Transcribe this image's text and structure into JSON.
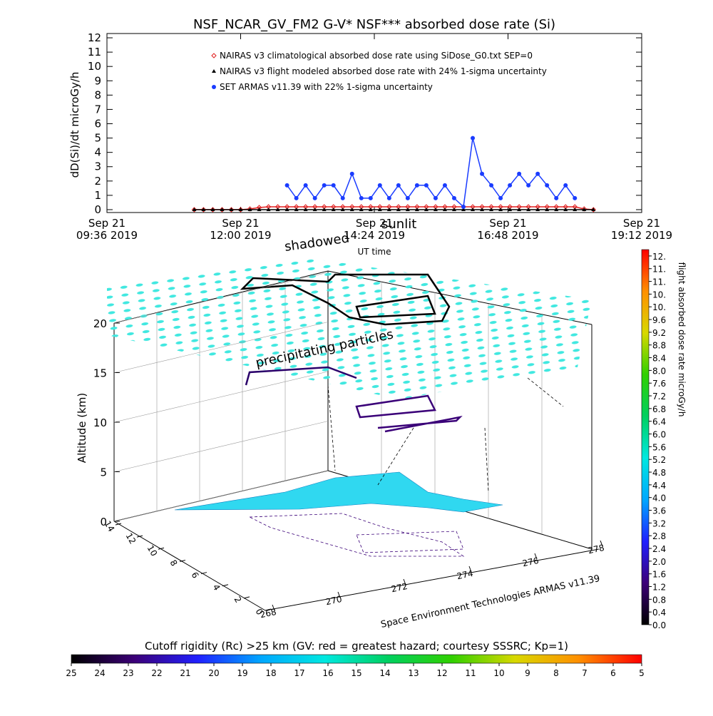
{
  "chart_data": [
    {
      "type": "line",
      "title": "NSF_NCAR_GV_FM2 G-V* NSF*** absorbed dose rate (Si)",
      "ylabel": "dD(Si)/dt microGy/h",
      "xlabel": "UT time",
      "xlim": [
        "2019-09-21 09:36",
        "2019-09-21 19:12"
      ],
      "xticks": [
        {
          "value": "2019-09-21 09:36",
          "label": [
            "Sep 21",
            "09:36 2019"
          ]
        },
        {
          "value": "2019-09-21 12:00",
          "label": [
            "Sep 21",
            "12:00 2019"
          ]
        },
        {
          "value": "2019-09-21 14:24",
          "label": [
            "Sep 21",
            "14:24 2019"
          ]
        },
        {
          "value": "2019-09-21 16:48",
          "label": [
            "Sep 21",
            "16:48 2019"
          ]
        },
        {
          "value": "2019-09-21 19:12",
          "label": [
            "Sep 21",
            "19:12 2019"
          ]
        }
      ],
      "ylim": [
        -0.2,
        12.3
      ],
      "yticks": [
        0,
        1,
        2,
        3,
        4,
        5,
        6,
        7,
        8,
        9,
        10,
        11,
        12
      ],
      "x": [
        "2019-09-21 11:10",
        "2019-09-21 11:20",
        "2019-09-21 11:30",
        "2019-09-21 11:40",
        "2019-09-21 11:50",
        "2019-09-21 12:00",
        "2019-09-21 12:10",
        "2019-09-21 12:20",
        "2019-09-21 12:30",
        "2019-09-21 12:40",
        "2019-09-21 12:50",
        "2019-09-21 13:00",
        "2019-09-21 13:10",
        "2019-09-21 13:20",
        "2019-09-21 13:30",
        "2019-09-21 13:40",
        "2019-09-21 13:50",
        "2019-09-21 14:00",
        "2019-09-21 14:10",
        "2019-09-21 14:20",
        "2019-09-21 14:30",
        "2019-09-21 14:40",
        "2019-09-21 14:50",
        "2019-09-21 15:00",
        "2019-09-21 15:10",
        "2019-09-21 15:20",
        "2019-09-21 15:30",
        "2019-09-21 15:40",
        "2019-09-21 15:50",
        "2019-09-21 16:00",
        "2019-09-21 16:10",
        "2019-09-21 16:20",
        "2019-09-21 16:30",
        "2019-09-21 16:40",
        "2019-09-21 16:50",
        "2019-09-21 17:00",
        "2019-09-21 17:10",
        "2019-09-21 17:20",
        "2019-09-21 17:30",
        "2019-09-21 17:40",
        "2019-09-21 17:50",
        "2019-09-21 18:00",
        "2019-09-21 18:10",
        "2019-09-21 18:20"
      ],
      "series": [
        {
          "name": "NAIRAS v3 climatological absorbed dose rate using SiDose_G0.txt SEP=0",
          "color": "#e02020",
          "marker": "diamond",
          "values": [
            0,
            0,
            0,
            0,
            0,
            0,
            0.05,
            0.15,
            0.2,
            0.2,
            0.2,
            0.2,
            0.2,
            0.2,
            0.2,
            0.2,
            0.2,
            0.2,
            0.2,
            0.2,
            0.2,
            0.2,
            0.2,
            0.2,
            0.2,
            0.2,
            0.2,
            0.2,
            0.2,
            0.2,
            0.2,
            0.2,
            0.2,
            0.2,
            0.2,
            0.2,
            0.2,
            0.2,
            0.2,
            0.2,
            0.2,
            0.2,
            0.05,
            0
          ]
        },
        {
          "name": "NAIRAS v3 flight modeled absorbed dose rate with 24% 1-sigma uncertainty",
          "color": "#000000",
          "marker": "triangle",
          "values": [
            0,
            0,
            0,
            0,
            0,
            0,
            0,
            0,
            0,
            0,
            0,
            0,
            0,
            0,
            0,
            0,
            0,
            0,
            0,
            0,
            0,
            0,
            0,
            0,
            0,
            0,
            0,
            0,
            0,
            0,
            0,
            0,
            0,
            0,
            0,
            0,
            0,
            0,
            0,
            0,
            0,
            0,
            0,
            0
          ]
        },
        {
          "name": "SET ARMAS v11.39 with 22% 1-sigma uncertainty",
          "color": "#1a3cff",
          "marker": "circle",
          "values": [
            null,
            null,
            null,
            null,
            null,
            null,
            null,
            null,
            null,
            null,
            1.7,
            0.8,
            1.7,
            0.8,
            1.7,
            1.7,
            0.8,
            2.5,
            0.8,
            0.8,
            1.7,
            0.8,
            1.7,
            0.8,
            1.7,
            1.7,
            0.8,
            1.7,
            0.8,
            0.2,
            5.0,
            2.5,
            1.7,
            0.8,
            1.7,
            2.5,
            1.7,
            2.5,
            1.7,
            0.8,
            1.7,
            0.8,
            null,
            null
          ]
        }
      ]
    },
    {
      "type": "surface3d",
      "zlabel": "Altitude (km)",
      "zlim": [
        0,
        20
      ],
      "zticks": [
        0,
        5,
        10,
        15,
        20
      ],
      "xlim": [
        268,
        278
      ],
      "xticks": [
        268,
        270,
        272,
        274,
        276,
        278
      ],
      "ylim": [
        0,
        14
      ],
      "yticks": [
        0,
        2,
        4,
        6,
        8,
        10,
        12,
        14
      ],
      "annotations": [
        "shadowed",
        "sunlit",
        "precipitating particles",
        "Space Environment Technologies ARMAS v11.39"
      ],
      "colormap": [
        "#000000",
        "#3c0078",
        "#2020ff",
        "#00a8ff",
        "#00e8e0",
        "#00d060",
        "#30d000",
        "#d8d800",
        "#ff9000",
        "#ff0000"
      ],
      "colorbar": {
        "label": "flight absorbed dose rate microGy/h",
        "lim": [
          0,
          11.8
        ],
        "ticks": [
          {
            "value": 0,
            "label": "0.0"
          },
          {
            "value": 0.4,
            "label": "0.4"
          },
          {
            "value": 0.8,
            "label": "0.8"
          },
          {
            "value": 1.2,
            "label": "1.2"
          },
          {
            "value": 1.6,
            "label": "1.6"
          },
          {
            "value": 2,
            "label": "2.0"
          },
          {
            "value": 2.4,
            "label": "2.4"
          },
          {
            "value": 2.8,
            "label": "2.8"
          },
          {
            "value": 3.2,
            "label": "3.2"
          },
          {
            "value": 3.6,
            "label": "3.6"
          },
          {
            "value": 4,
            "label": "4.0"
          },
          {
            "value": 4.4,
            "label": "4.4"
          },
          {
            "value": 4.8,
            "label": "4.8"
          },
          {
            "value": 5.2,
            "label": "5.2"
          },
          {
            "value": 5.6,
            "label": "5.6"
          },
          {
            "value": 6,
            "label": "6.0"
          },
          {
            "value": 6.4,
            "label": "6.4"
          },
          {
            "value": 6.8,
            "label": "6.8"
          },
          {
            "value": 7.2,
            "label": "7.2"
          },
          {
            "value": 7.6,
            "label": "7.6"
          },
          {
            "value": 8,
            "label": "8.0"
          },
          {
            "value": 8.4,
            "label": "8.4"
          },
          {
            "value": 8.8,
            "label": "8.8"
          },
          {
            "value": 9.2,
            "label": "9.2"
          },
          {
            "value": 9.6,
            "label": "9.6"
          },
          {
            "value": 10,
            "label": "10."
          },
          {
            "value": 10.4,
            "label": "10."
          },
          {
            "value": 10.8,
            "label": "11."
          },
          {
            "value": 11.2,
            "label": "11."
          },
          {
            "value": 11.6,
            "label": "12."
          }
        ]
      },
      "rigidity_colorbar": {
        "title": "Cutoff rigidity (Rc) >25 km (GV: red = greatest hazard; courtesy SSSRC; Kp=1)",
        "lim": [
          25,
          5
        ],
        "ticks": [
          25,
          24,
          23,
          22,
          21,
          20,
          19,
          18,
          17,
          16,
          15,
          14,
          13,
          12,
          11,
          10,
          9,
          8,
          7,
          6,
          5
        ]
      }
    }
  ]
}
